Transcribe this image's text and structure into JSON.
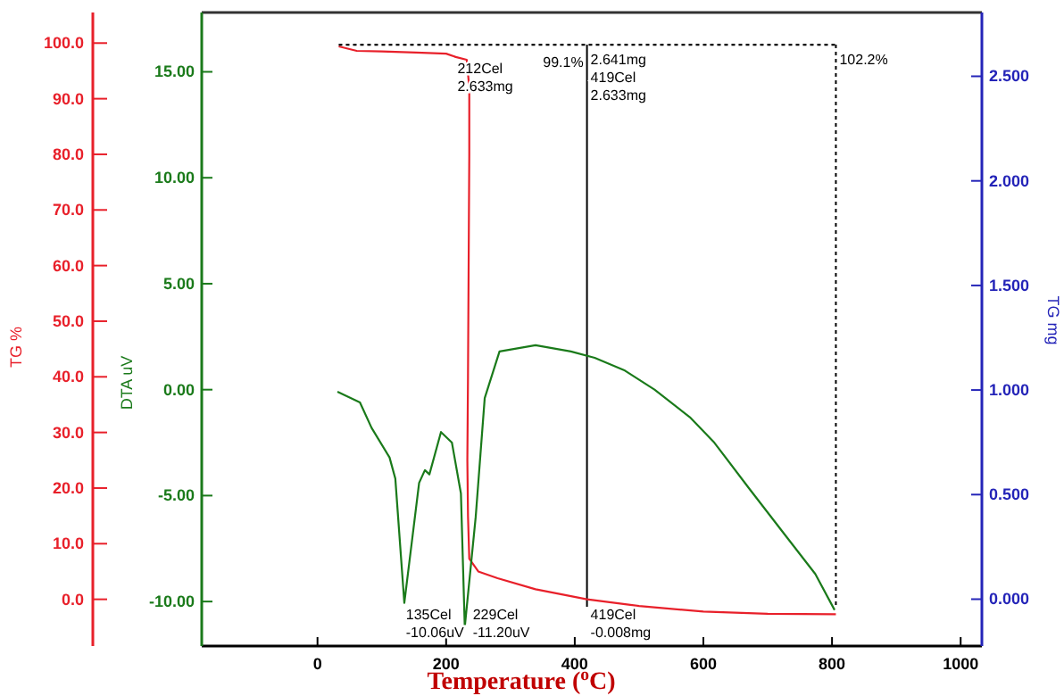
{
  "chart_data": {
    "type": "line",
    "xlabel": "Temperature ($^{o}$C)",
    "ylabel": "DTA uV",
    "y2label": "TG %",
    "y3label": "TG mg",
    "xlim": [
      -180,
      1033
    ],
    "xticks": [
      0,
      200,
      400,
      600,
      800,
      1000
    ],
    "ylim": [
      -12.1,
      17.8
    ],
    "yticks": [
      {
        "value": -10,
        "label": "-10.00"
      },
      {
        "value": -5,
        "label": "-5.00"
      },
      {
        "value": 0,
        "label": "0.00"
      },
      {
        "value": 5,
        "label": "5.00"
      },
      {
        "value": 10,
        "label": "10.00"
      },
      {
        "value": 15,
        "label": "15.00"
      }
    ],
    "y2lim": [
      -8.4,
      105.5
    ],
    "y2ticks": [
      {
        "value": 0,
        "label": "0.0"
      },
      {
        "value": 10,
        "label": "10.0"
      },
      {
        "value": 20,
        "label": "20.0"
      },
      {
        "value": 30,
        "label": "30.0"
      },
      {
        "value": 40,
        "label": "40.0"
      },
      {
        "value": 50,
        "label": "50.0"
      },
      {
        "value": 60,
        "label": "60.0"
      },
      {
        "value": 70,
        "label": "70.0"
      },
      {
        "value": 80,
        "label": "80.0"
      },
      {
        "value": 90,
        "label": "90.0"
      },
      {
        "value": 100,
        "label": "100.0"
      }
    ],
    "y3lim": [
      -0.224,
      2.805
    ],
    "y3ticks": [
      {
        "value": 0,
        "label": "0.000"
      },
      {
        "value": 0.5,
        "label": "0.500"
      },
      {
        "value": 1,
        "label": "1.000"
      },
      {
        "value": 1.5,
        "label": "1.500"
      },
      {
        "value": 2,
        "label": "2.000"
      },
      {
        "value": 2.5,
        "label": "2.500"
      }
    ],
    "series": [
      {
        "color": "#e8202a",
        "axis": "y2",
        "x": [
          33,
          61,
          100,
          153,
          200,
          215,
          232,
          236,
          236,
          235,
          234,
          233,
          234,
          236,
          250,
          280,
          339,
          419,
          500,
          600,
          700,
          806
        ],
        "values": [
          99.4,
          98.6,
          98.5,
          98.3,
          98.1,
          97.5,
          97,
          92,
          80,
          60,
          40,
          25,
          15,
          7.3,
          5,
          3.8,
          1.8,
          0,
          -1.2,
          -2.2,
          -2.6,
          -2.7
        ]
      },
      {
        "color": "#1a7a1a",
        "x": [
          31,
          66,
          84,
          112,
          121,
          135,
          158,
          167,
          174,
          192,
          209,
          223,
          229,
          246,
          260,
          283,
          339,
          394,
          431,
          478,
          524,
          579,
          617,
          672,
          728,
          774,
          804
        ],
        "values": [
          -0.1,
          -0.6,
          -1.8,
          -3.2,
          -4.2,
          -10.06,
          -4.4,
          -3.8,
          -4,
          -2,
          -2.5,
          -4.9,
          -11.2,
          -6,
          -0.4,
          1.8,
          2.1,
          1.8,
          1.5,
          0.9,
          0,
          -1.3,
          -2.5,
          -4.7,
          -6.9,
          -8.7,
          -10.4
        ]
      },
      {
        "color": "#000000",
        "axis": "y2",
        "line_style": "dotted",
        "x": [
          33,
          806
        ],
        "values": [
          99.7,
          99.7
        ]
      }
    ],
    "ref_lines": [
      {
        "axis": "x",
        "value": 419,
        "color": "#000000",
        "line_style": "solid"
      },
      {
        "axis": "x",
        "value": 806,
        "color": "#000000",
        "line_style": "dotted"
      }
    ],
    "annotations": [
      {
        "text": "212Cel\n2.633mg",
        "x": 212,
        "y": 15.7
      },
      {
        "text": "99.1%",
        "x": 345,
        "y": 16.0
      },
      {
        "text": "2.641mg\n419Cel\n2.633mg",
        "x": 419,
        "y": 16.1
      },
      {
        "text": "102.2%",
        "x": 806,
        "y": 16.1
      },
      {
        "text": "135Cel\n-10.06uV",
        "x": 132,
        "y": -10.06
      },
      {
        "text": "229Cel\n-11.20uV",
        "x": 236,
        "y": -10.06
      },
      {
        "text": "419Cel\n-0.008mg",
        "x": 419,
        "y": -10.06
      }
    ],
    "grid": false
  }
}
